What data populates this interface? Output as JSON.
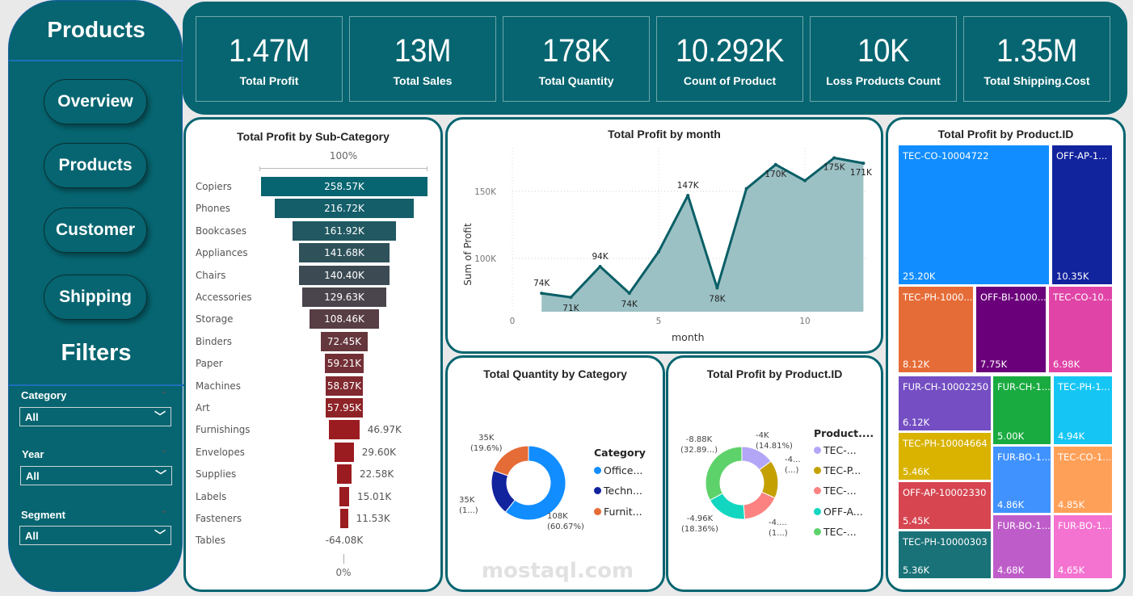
{
  "sidebar": {
    "title": "Products",
    "nav": [
      "Overview",
      "Products",
      "Customer",
      "Shipping"
    ],
    "filters_title": "Filters",
    "filters": [
      {
        "label": "Category",
        "value": "All"
      },
      {
        "label": "Year",
        "value": "All"
      },
      {
        "label": "Segment",
        "value": "All"
      }
    ]
  },
  "kpis": [
    {
      "value": "1.47M",
      "label": "Total Profit"
    },
    {
      "value": "13M",
      "label": "Total Sales"
    },
    {
      "value": "178K",
      "label": "Total Quantity"
    },
    {
      "value": "10.292K",
      "label": "Count of Product"
    },
    {
      "value": "10K",
      "label": "Loss Products Count"
    },
    {
      "value": "1.35M",
      "label": "Total Shipping.Cost"
    }
  ],
  "colors": {
    "brand": "#066570",
    "funnel_top": "#066570",
    "funnel_bottom": "#9b1c20",
    "line": "#0a5f66",
    "area": "#9cc1c5"
  },
  "chart_data": [
    {
      "type": "funnel",
      "title": "Total Profit by Sub-Category",
      "top_label": "100%",
      "bottom_label": "0%",
      "categories": [
        "Copiers",
        "Phones",
        "Bookcases",
        "Appliances",
        "Chairs",
        "Accessories",
        "Storage",
        "Binders",
        "Paper",
        "Machines",
        "Art",
        "Furnishings",
        "Envelopes",
        "Supplies",
        "Labels",
        "Fasteners",
        "Tables"
      ],
      "values": [
        258.57,
        216.72,
        161.92,
        141.68,
        140.4,
        129.63,
        108.46,
        72.45,
        59.21,
        58.87,
        57.95,
        46.97,
        29.6,
        22.58,
        15.01,
        11.53,
        -64.08
      ],
      "value_labels": [
        "258.57K",
        "216.72K",
        "161.92K",
        "141.68K",
        "140.40K",
        "129.63K",
        "108.46K",
        "72.45K",
        "59.21K",
        "58.87K",
        "57.95K",
        "46.97K",
        "29.60K",
        "22.58K",
        "15.01K",
        "11.53K",
        "-64.08K"
      ]
    },
    {
      "type": "area",
      "title": "Total Profit by month",
      "xlabel": "month",
      "ylabel": "Sum of Profit",
      "x": [
        1,
        2,
        3,
        4,
        5,
        6,
        7,
        8,
        9,
        10,
        11,
        12
      ],
      "y": [
        74000,
        71000,
        94000,
        74000,
        105000,
        147000,
        78000,
        152000,
        170000,
        158000,
        175000,
        171000
      ],
      "data_labels": {
        "1": "74K",
        "2": "71K",
        "3": "94K",
        "4": "74K",
        "6": "147K",
        "7": "78K",
        "9": "170K",
        "11": "175K",
        "12": "171K"
      },
      "xticks": [
        "0",
        "5",
        "10"
      ],
      "yticks": [
        "100K",
        "150K"
      ],
      "grid": true
    },
    {
      "type": "donut",
      "title": "Total Quantity by Category",
      "legend_title": "Category",
      "legend_position": "right",
      "slices": [
        {
          "name": "Office...",
          "value_pct": 60.67,
          "label": "108K",
          "sub": "(60.67%)",
          "color": "#118dff"
        },
        {
          "name": "Techn...",
          "value_pct": 19.73,
          "label": "35K",
          "sub": "(1...)",
          "color": "#12239e"
        },
        {
          "name": "Furnit...",
          "value_pct": 19.6,
          "label": "35K",
          "sub": "(19.6%)",
          "color": "#e66c37"
        }
      ]
    },
    {
      "type": "donut",
      "title": "Total Profit by Product.ID",
      "legend_title": "Product....",
      "legend_position": "right",
      "slices": [
        {
          "name": "TEC-...",
          "value_pct": 14.81,
          "label": "-4K",
          "sub": "(14.81%)",
          "color": "#b3a6f7"
        },
        {
          "name": "TEC-P...",
          "value_pct": 17.0,
          "label": "-4...",
          "sub": "(...)",
          "color": "#c4a000"
        },
        {
          "name": "TEC-...",
          "value_pct": 16.94,
          "label": "-4.... (1...)",
          "sub": "",
          "color": "#fb8281"
        },
        {
          "name": "OFF-A...",
          "value_pct": 18.36,
          "label": "-4.96K",
          "sub": "(18.36%)",
          "color": "#13d6c0"
        },
        {
          "name": "TEC-...",
          "value_pct": 32.89,
          "label": "-8.88K",
          "sub": "(32.89...)",
          "color": "#5ed26a"
        }
      ]
    },
    {
      "type": "treemap",
      "title": "Total Profit by Product.ID",
      "tiles": [
        {
          "name": "TEC-CO-10004722",
          "value": "25.20K",
          "color": "#118dff"
        },
        {
          "name": "OFF-AP-1...",
          "value": "10.35K",
          "color": "#12239e"
        },
        {
          "name": "TEC-PH-1000...",
          "value": "8.12K",
          "color": "#e66c37"
        },
        {
          "name": "OFF-BI-1000...",
          "value": "7.75K",
          "color": "#6b007b"
        },
        {
          "name": "TEC-CO-10...",
          "value": "6.98K",
          "color": "#e044a7"
        },
        {
          "name": "FUR-CH-10002250",
          "value": "6.12K",
          "color": "#744ec2"
        },
        {
          "name": "TEC-PH-10004664",
          "value": "5.46K",
          "color": "#d9b300"
        },
        {
          "name": "OFF-AP-10002330",
          "value": "5.45K",
          "color": "#d64550"
        },
        {
          "name": "TEC-PH-10000303",
          "value": "5.36K",
          "color": "#197278"
        },
        {
          "name": "FUR-CH-1...",
          "value": "5.00K",
          "color": "#1aab40"
        },
        {
          "name": "TEC-PH-1...",
          "value": "4.94K",
          "color": "#15c6f4"
        },
        {
          "name": "FUR-BO-1...",
          "value": "4.86K",
          "color": "#4092ff"
        },
        {
          "name": "TEC-CO-1...",
          "value": "4.85K",
          "color": "#ffa058"
        },
        {
          "name": "FUR-BO-1...",
          "value": "4.68K",
          "color": "#be5dc9"
        },
        {
          "name": "FUR-BO-1...",
          "value": "4.65K",
          "color": "#f472d0"
        }
      ]
    }
  ],
  "watermark": "mostaql.com"
}
